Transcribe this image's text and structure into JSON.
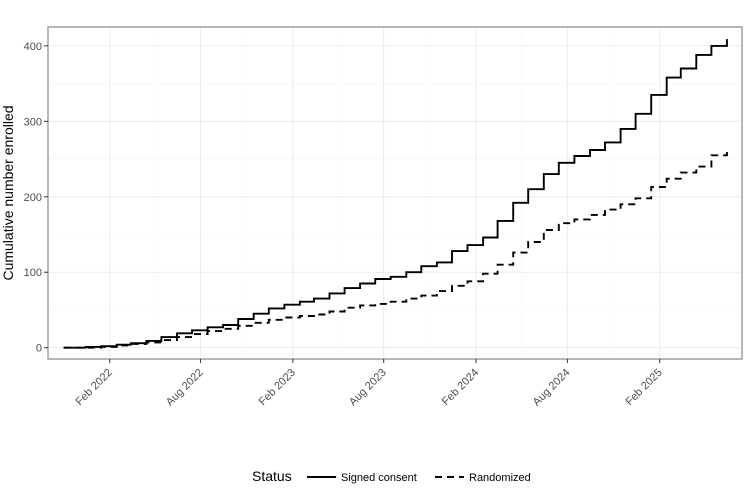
{
  "chart_data": {
    "type": "line",
    "title": "",
    "xlabel": "",
    "ylabel": "Cumulative number enrolled",
    "x_type": "date",
    "xlim": [
      "2021-10-01",
      "2025-07-15"
    ],
    "ylim": [
      -15,
      425
    ],
    "x_ticks": [
      "2022-02-01",
      "2022-08-01",
      "2023-02-01",
      "2023-08-01",
      "2024-02-01",
      "2024-08-01",
      "2025-02-01"
    ],
    "x_tick_labels": [
      "Feb 2022",
      "Aug 2022",
      "Feb 2023",
      "Aug 2023",
      "Feb 2024",
      "Aug 2024",
      "Feb 2025"
    ],
    "y_ticks": [
      0,
      100,
      200,
      300,
      400
    ],
    "grid": true,
    "legend": {
      "title": "Status",
      "position": "bottom",
      "entries": [
        "Signed consent",
        "Randomized"
      ]
    },
    "series": [
      {
        "name": "Signed consent",
        "line_style": "solid",
        "color": "#000000",
        "points": [
          [
            "2021-11-01",
            0
          ],
          [
            "2021-12-15",
            1
          ],
          [
            "2022-01-15",
            2
          ],
          [
            "2022-02-15",
            4
          ],
          [
            "2022-03-15",
            6
          ],
          [
            "2022-04-15",
            9
          ],
          [
            "2022-05-15",
            14
          ],
          [
            "2022-06-15",
            19
          ],
          [
            "2022-07-15",
            23
          ],
          [
            "2022-08-15",
            27
          ],
          [
            "2022-09-15",
            30
          ],
          [
            "2022-10-15",
            38
          ],
          [
            "2022-11-15",
            45
          ],
          [
            "2022-12-15",
            52
          ],
          [
            "2023-01-15",
            57
          ],
          [
            "2023-02-15",
            61
          ],
          [
            "2023-03-15",
            65
          ],
          [
            "2023-04-15",
            72
          ],
          [
            "2023-05-15",
            79
          ],
          [
            "2023-06-15",
            85
          ],
          [
            "2023-07-15",
            91
          ],
          [
            "2023-08-15",
            94
          ],
          [
            "2023-09-15",
            100
          ],
          [
            "2023-10-15",
            108
          ],
          [
            "2023-11-15",
            113
          ],
          [
            "2023-12-15",
            128
          ],
          [
            "2024-01-15",
            136
          ],
          [
            "2024-02-15",
            146
          ],
          [
            "2024-03-15",
            168
          ],
          [
            "2024-04-15",
            192
          ],
          [
            "2024-05-15",
            210
          ],
          [
            "2024-06-15",
            230
          ],
          [
            "2024-07-15",
            245
          ],
          [
            "2024-08-15",
            254
          ],
          [
            "2024-09-15",
            262
          ],
          [
            "2024-10-15",
            272
          ],
          [
            "2024-11-15",
            290
          ],
          [
            "2024-12-15",
            310
          ],
          [
            "2025-01-15",
            335
          ],
          [
            "2025-02-15",
            358
          ],
          [
            "2025-03-15",
            370
          ],
          [
            "2025-04-15",
            388
          ],
          [
            "2025-05-15",
            400
          ],
          [
            "2025-06-15",
            409
          ]
        ]
      },
      {
        "name": "Randomized",
        "line_style": "dashed",
        "color": "#000000",
        "points": [
          [
            "2021-11-01",
            0
          ],
          [
            "2022-01-15",
            1
          ],
          [
            "2022-02-15",
            3
          ],
          [
            "2022-03-15",
            5
          ],
          [
            "2022-04-15",
            7
          ],
          [
            "2022-05-15",
            10
          ],
          [
            "2022-06-15",
            14
          ],
          [
            "2022-07-15",
            18
          ],
          [
            "2022-08-15",
            22
          ],
          [
            "2022-09-15",
            25
          ],
          [
            "2022-10-15",
            29
          ],
          [
            "2022-11-15",
            33
          ],
          [
            "2022-12-15",
            37
          ],
          [
            "2023-01-15",
            40
          ],
          [
            "2023-02-15",
            42
          ],
          [
            "2023-03-15",
            44
          ],
          [
            "2023-04-15",
            48
          ],
          [
            "2023-05-15",
            53
          ],
          [
            "2023-06-15",
            56
          ],
          [
            "2023-07-15",
            58
          ],
          [
            "2023-08-15",
            61
          ],
          [
            "2023-09-15",
            65
          ],
          [
            "2023-10-15",
            69
          ],
          [
            "2023-11-15",
            75
          ],
          [
            "2023-12-15",
            82
          ],
          [
            "2024-01-15",
            88
          ],
          [
            "2024-02-15",
            98
          ],
          [
            "2024-03-15",
            110
          ],
          [
            "2024-04-15",
            126
          ],
          [
            "2024-05-15",
            140
          ],
          [
            "2024-06-15",
            156
          ],
          [
            "2024-07-15",
            165
          ],
          [
            "2024-08-15",
            170
          ],
          [
            "2024-09-15",
            176
          ],
          [
            "2024-10-15",
            183
          ],
          [
            "2024-11-15",
            190
          ],
          [
            "2024-12-15",
            198
          ],
          [
            "2025-01-15",
            213
          ],
          [
            "2025-02-15",
            224
          ],
          [
            "2025-03-15",
            232
          ],
          [
            "2025-04-15",
            240
          ],
          [
            "2025-05-15",
            255
          ],
          [
            "2025-06-15",
            265
          ]
        ]
      }
    ]
  }
}
